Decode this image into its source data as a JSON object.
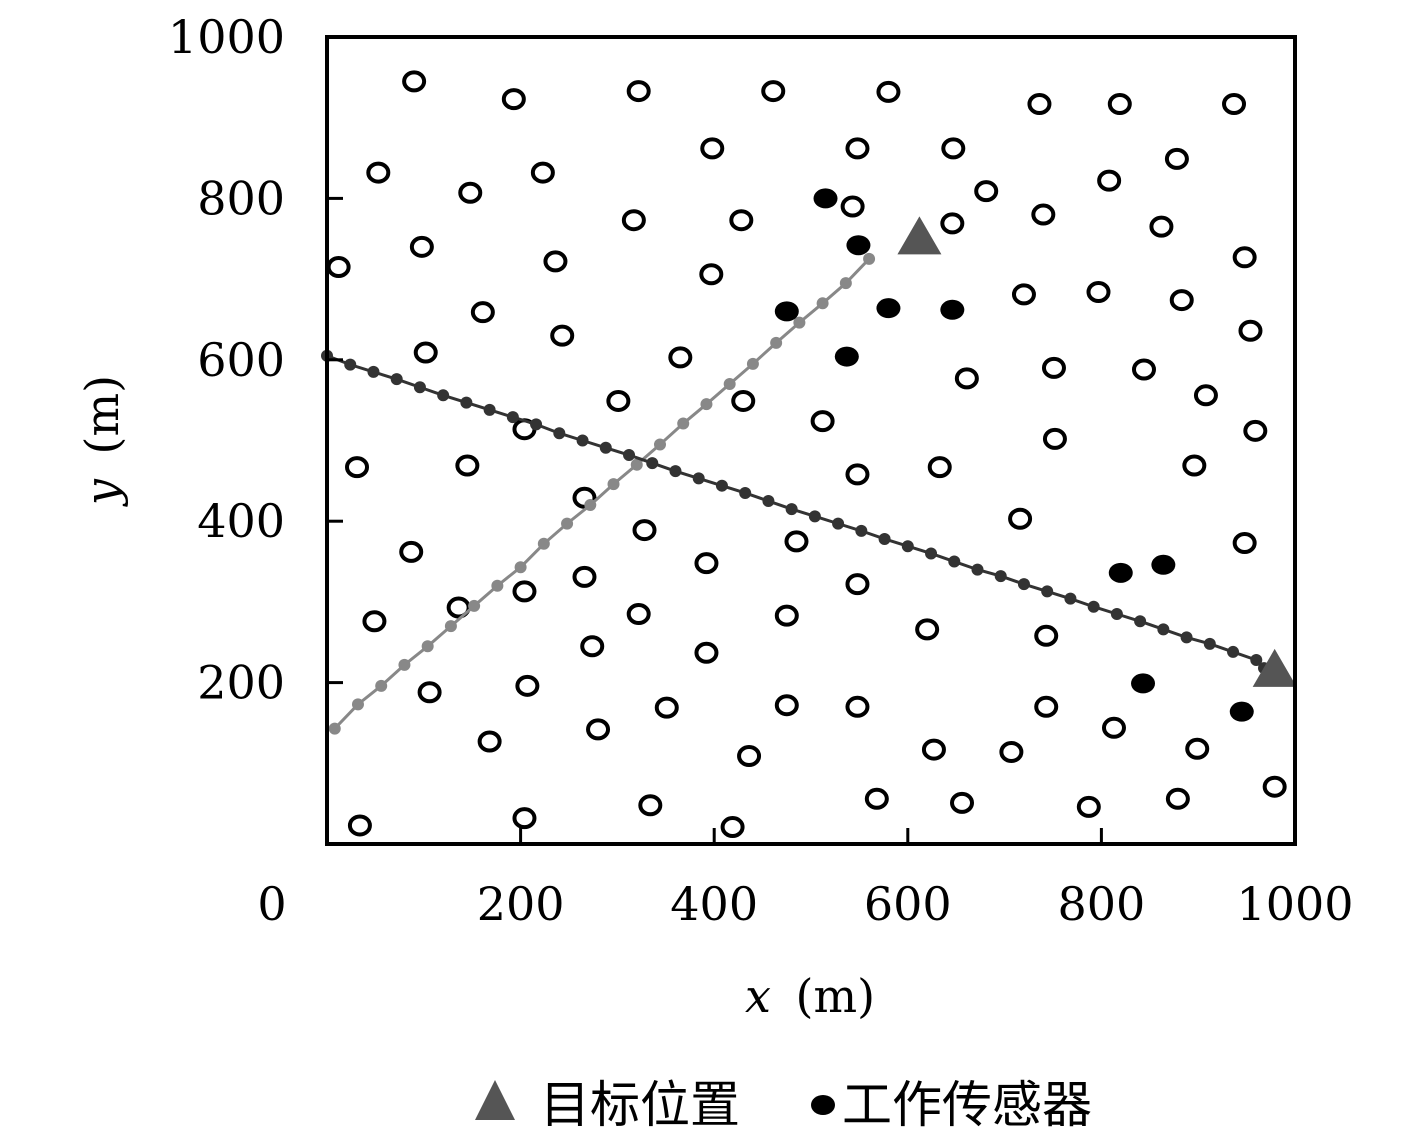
{
  "chart_data": {
    "type": "scatter",
    "xlabel_var": "x",
    "xlabel_unit": "(m)",
    "ylabel_var": "y",
    "ylabel_unit": "(m)",
    "xlim": [
      0,
      1000
    ],
    "ylim": [
      0,
      1000
    ],
    "x_ticks": [
      200,
      400,
      600,
      800,
      1000
    ],
    "y_ticks": [
      200,
      400,
      600,
      800,
      1000
    ],
    "origin_label": "0",
    "grid": false,
    "legend_position": "bottom",
    "legend": [
      {
        "label": "目标位置",
        "marker": "triangle",
        "color": "#555555"
      },
      {
        "label": "工作传感器",
        "marker": "filled-circle",
        "color": "#000000"
      }
    ],
    "idle_sensors": [
      [
        90,
        945
      ],
      [
        193,
        923
      ],
      [
        322,
        933
      ],
      [
        461,
        933
      ],
      [
        580,
        932
      ],
      [
        736,
        917
      ],
      [
        819,
        917
      ],
      [
        937,
        917
      ],
      [
        53,
        832
      ],
      [
        148,
        807
      ],
      [
        223,
        832
      ],
      [
        398,
        862
      ],
      [
        548,
        862
      ],
      [
        647,
        862
      ],
      [
        681,
        809
      ],
      [
        808,
        822
      ],
      [
        878,
        849
      ],
      [
        12,
        715
      ],
      [
        98,
        740
      ],
      [
        236,
        722
      ],
      [
        317,
        773
      ],
      [
        428,
        773
      ],
      [
        397,
        706
      ],
      [
        543,
        790
      ],
      [
        646,
        769
      ],
      [
        740,
        780
      ],
      [
        862,
        765
      ],
      [
        948,
        727
      ],
      [
        161,
        659
      ],
      [
        102,
        609
      ],
      [
        243,
        630
      ],
      [
        365,
        603
      ],
      [
        720,
        681
      ],
      [
        797,
        684
      ],
      [
        883,
        674
      ],
      [
        954,
        636
      ],
      [
        301,
        549
      ],
      [
        430,
        549
      ],
      [
        512,
        524
      ],
      [
        661,
        577
      ],
      [
        751,
        590
      ],
      [
        844,
        588
      ],
      [
        908,
        556
      ],
      [
        31,
        467
      ],
      [
        145,
        469
      ],
      [
        204,
        514
      ],
      [
        548,
        458
      ],
      [
        633,
        467
      ],
      [
        752,
        502
      ],
      [
        959,
        512
      ],
      [
        896,
        469
      ],
      [
        266,
        429
      ],
      [
        328,
        389
      ],
      [
        485,
        375
      ],
      [
        716,
        403
      ],
      [
        948,
        373
      ],
      [
        87,
        362
      ],
      [
        49,
        276
      ],
      [
        136,
        293
      ],
      [
        204,
        313
      ],
      [
        266,
        331
      ],
      [
        322,
        285
      ],
      [
        392,
        348
      ],
      [
        475,
        283
      ],
      [
        548,
        322
      ],
      [
        620,
        266
      ],
      [
        743,
        258
      ],
      [
        106,
        188
      ],
      [
        207,
        196
      ],
      [
        274,
        245
      ],
      [
        392,
        237
      ],
      [
        627,
        117
      ],
      [
        707,
        114
      ],
      [
        813,
        144
      ],
      [
        899,
        118
      ],
      [
        743,
        170
      ],
      [
        548,
        170
      ],
      [
        475,
        172
      ],
      [
        351,
        169
      ],
      [
        280,
        142
      ],
      [
        168,
        127
      ],
      [
        436,
        109
      ],
      [
        34,
        23
      ],
      [
        204,
        32
      ],
      [
        419,
        21
      ],
      [
        334,
        48
      ],
      [
        568,
        56
      ],
      [
        656,
        51
      ],
      [
        787,
        46
      ],
      [
        879,
        56
      ],
      [
        979,
        71
      ]
    ],
    "working_sensors": [
      [
        515,
        800
      ],
      [
        549,
        742
      ],
      [
        475,
        660
      ],
      [
        580,
        664
      ],
      [
        646,
        662
      ],
      [
        537,
        604
      ],
      [
        820,
        336
      ],
      [
        864,
        346
      ],
      [
        843,
        199
      ],
      [
        945,
        164
      ]
    ],
    "targets": [
      [
        612,
        753
      ],
      [
        979,
        217
      ]
    ],
    "track_grey": {
      "color": "#888888",
      "points": [
        [
          8,
          143
        ],
        [
          32,
          173
        ],
        [
          56,
          196
        ],
        [
          80,
          222
        ],
        [
          104,
          245
        ],
        [
          128,
          270
        ],
        [
          152,
          295
        ],
        [
          176,
          320
        ],
        [
          200,
          343
        ],
        [
          224,
          372
        ],
        [
          248,
          397
        ],
        [
          272,
          420
        ],
        [
          296,
          446
        ],
        [
          320,
          470
        ],
        [
          344,
          495
        ],
        [
          368,
          521
        ],
        [
          392,
          545
        ],
        [
          416,
          570
        ],
        [
          440,
          595
        ],
        [
          464,
          621
        ],
        [
          488,
          646
        ],
        [
          512,
          670
        ],
        [
          536,
          695
        ],
        [
          560,
          725
        ]
      ]
    },
    "track_dark": {
      "color": "#333333",
      "points": [
        [
          0,
          605
        ],
        [
          24,
          594
        ],
        [
          48,
          585
        ],
        [
          72,
          576
        ],
        [
          96,
          566
        ],
        [
          120,
          556
        ],
        [
          144,
          547
        ],
        [
          168,
          538
        ],
        [
          192,
          529
        ],
        [
          216,
          520
        ],
        [
          240,
          509
        ],
        [
          264,
          500
        ],
        [
          288,
          491
        ],
        [
          312,
          482
        ],
        [
          336,
          472
        ],
        [
          360,
          462
        ],
        [
          384,
          453
        ],
        [
          408,
          444
        ],
        [
          432,
          435
        ],
        [
          456,
          425
        ],
        [
          480,
          415
        ],
        [
          504,
          406
        ],
        [
          528,
          397
        ],
        [
          552,
          388
        ],
        [
          576,
          378
        ],
        [
          600,
          369
        ],
        [
          624,
          360
        ],
        [
          648,
          350
        ],
        [
          672,
          340
        ],
        [
          696,
          332
        ],
        [
          720,
          322
        ],
        [
          744,
          313
        ],
        [
          768,
          304
        ],
        [
          792,
          294
        ],
        [
          816,
          285
        ],
        [
          840,
          276
        ],
        [
          864,
          266
        ],
        [
          888,
          256
        ],
        [
          912,
          248
        ],
        [
          936,
          238
        ],
        [
          960,
          228
        ],
        [
          968,
          218
        ]
      ]
    }
  }
}
